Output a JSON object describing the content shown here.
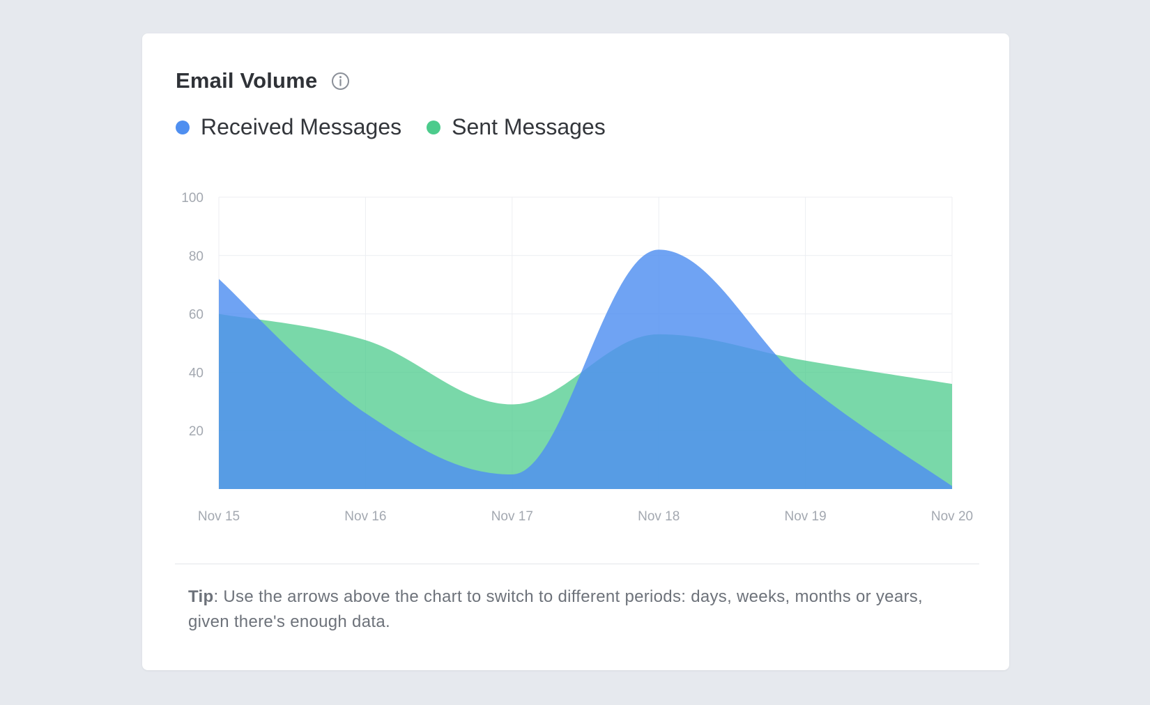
{
  "card": {
    "title": "Email Volume",
    "info_icon": "info-circle-icon"
  },
  "legend": [
    {
      "label": "Received Messages",
      "color": "#4f8ff0"
    },
    {
      "label": "Sent Messages",
      "color": "#4ccb8c"
    }
  ],
  "chart_data": {
    "type": "area",
    "categories": [
      "Nov 15",
      "Nov 16",
      "Nov 17",
      "Nov 18",
      "Nov 19",
      "Nov 20"
    ],
    "series": [
      {
        "name": "Received Messages",
        "color": "#4f8ff0",
        "opacity": 0.82,
        "values": [
          72,
          26,
          5,
          82,
          36,
          1
        ]
      },
      {
        "name": "Sent Messages",
        "color": "#4ccb8c",
        "opacity": 0.75,
        "values": [
          60,
          51,
          29,
          53,
          44,
          36
        ]
      }
    ],
    "yticks": [
      20,
      40,
      60,
      80,
      100
    ],
    "ylim": [
      0,
      100
    ],
    "grid": true,
    "legend_position": "top-left"
  },
  "tip": {
    "label": "Tip",
    "text": ": Use the arrows above the chart to switch to different periods: days, weeks, months or years, given there's enough data."
  }
}
